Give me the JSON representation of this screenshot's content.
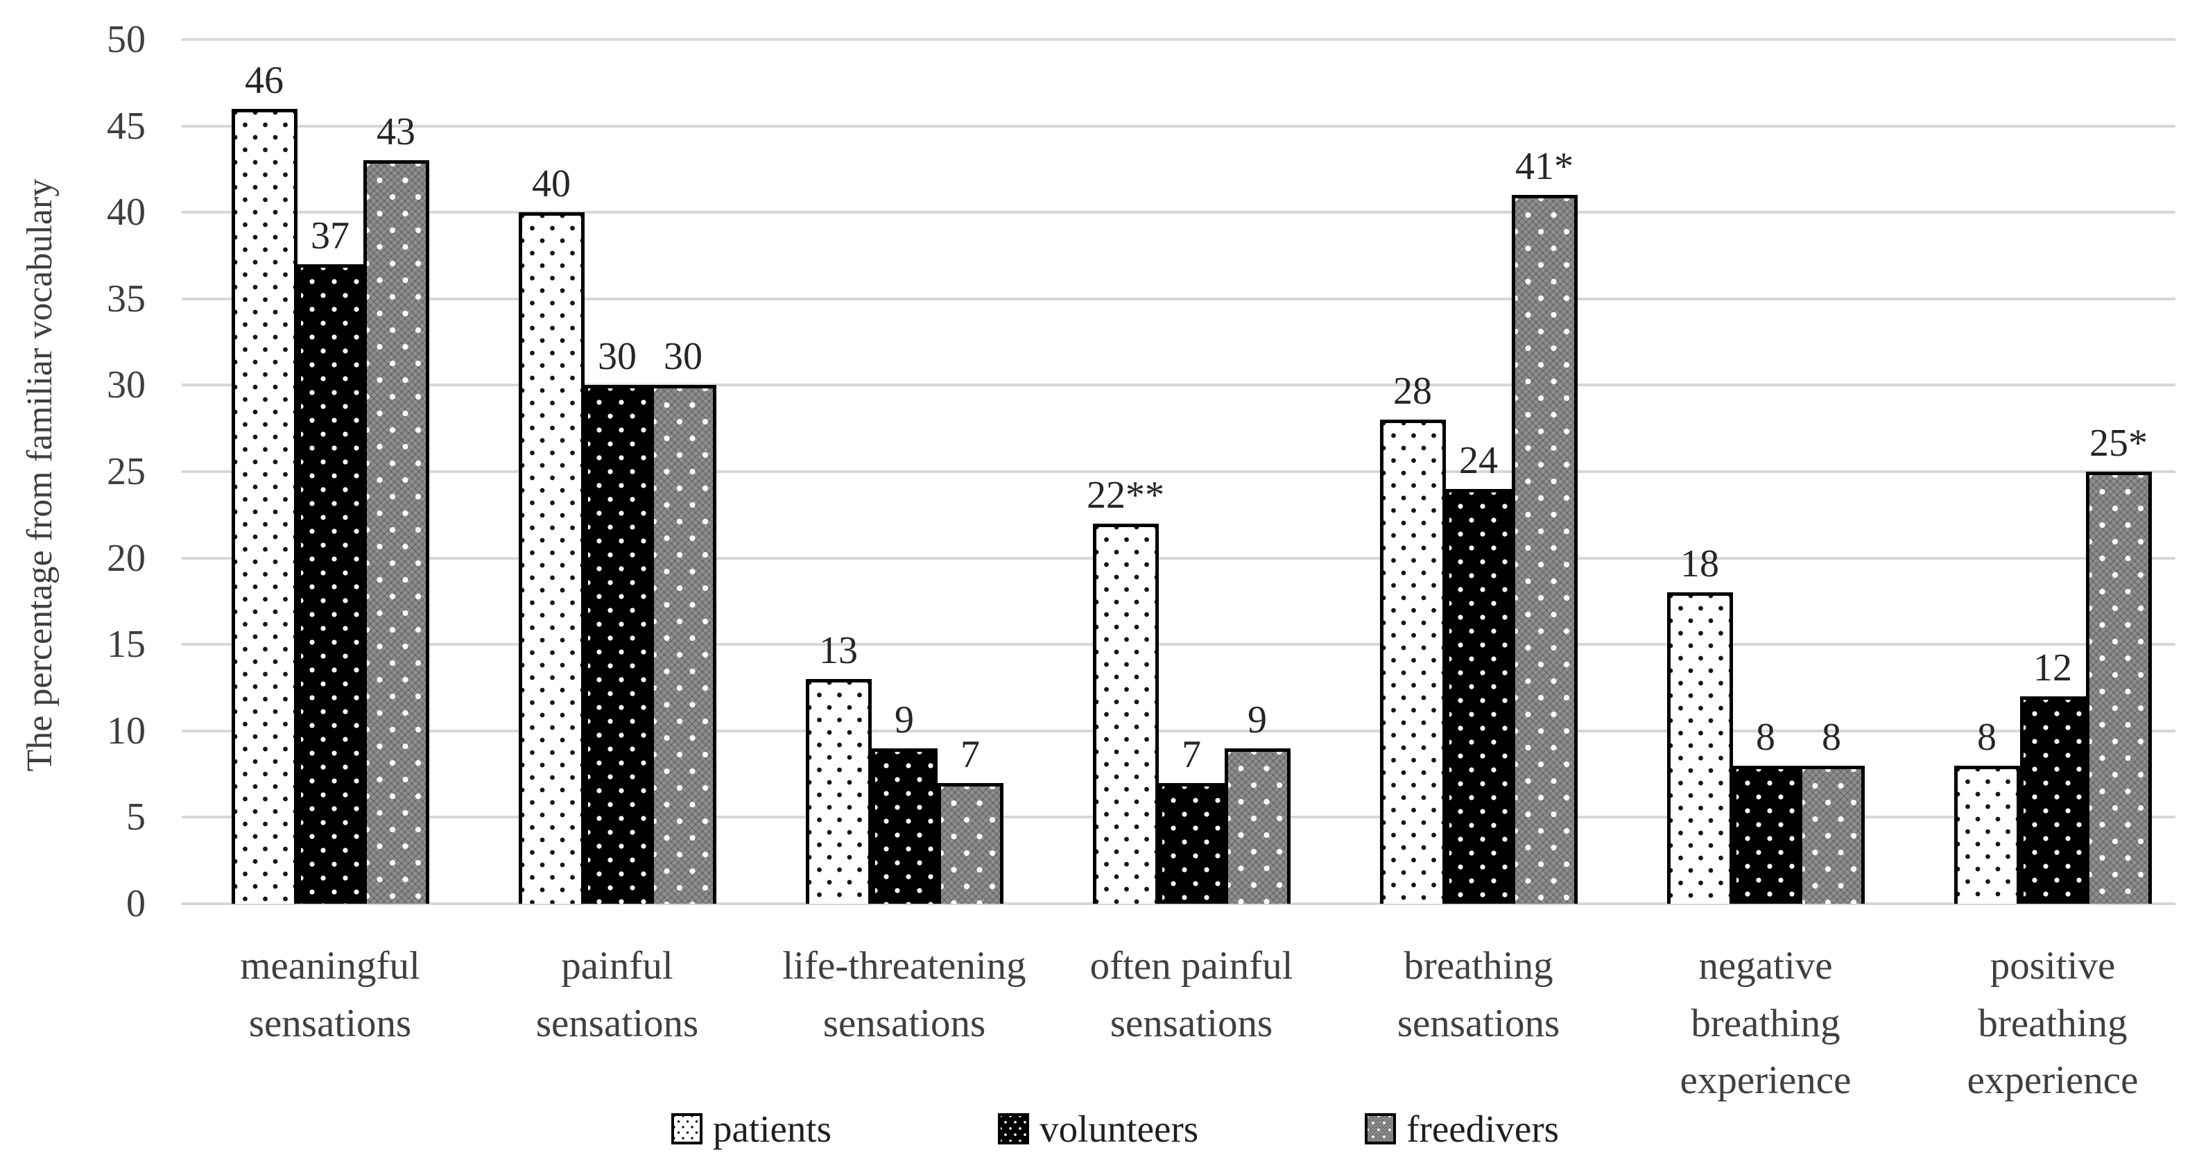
{
  "y_axis": {
    "title": "The percentage from familiar vocabulary",
    "ticks": [
      0,
      5,
      10,
      15,
      20,
      25,
      30,
      35,
      40,
      45,
      50
    ],
    "min": 0,
    "max": 50,
    "step": 5
  },
  "legend": {
    "items": [
      {
        "label": "patients",
        "swatch": "dotted-white-swatch"
      },
      {
        "label": "volunteers",
        "swatch": "dotted-black-swatch"
      },
      {
        "label": "freedivers",
        "swatch": "checker-gray-swatch"
      }
    ]
  },
  "chart_data": {
    "type": "bar",
    "title": "",
    "xlabel": "",
    "ylabel": "The percentage from familiar vocabulary",
    "ylim": [
      0,
      50
    ],
    "grid": true,
    "legend_position": "bottom",
    "categories": [
      "meaningful\nsensations",
      "painful\nsensations",
      "life-threatening\nsensations",
      "often painful\nsensations",
      "breathing\nsensations",
      "negative\nbreathing\nexperience",
      "positive\nbreathing\nexperience"
    ],
    "series": [
      {
        "name": "patients",
        "pattern": "white-with-black-dots",
        "values": [
          46,
          40,
          13,
          22,
          28,
          18,
          8
        ],
        "labels": [
          "46",
          "40",
          "13",
          "22**",
          "28",
          "18",
          "8"
        ]
      },
      {
        "name": "volunteers",
        "pattern": "black-with-white-dots",
        "values": [
          37,
          30,
          9,
          7,
          24,
          8,
          12
        ],
        "labels": [
          "37",
          "30",
          "9",
          "7",
          "24",
          "8",
          "12"
        ]
      },
      {
        "name": "freedivers",
        "pattern": "gray-checker-with-white-diamonds",
        "values": [
          43,
          30,
          7,
          9,
          41,
          8,
          25
        ],
        "labels": [
          "43",
          "30",
          "7",
          "9",
          "41*",
          "8",
          "25*"
        ]
      }
    ]
  },
  "colors": {
    "background": "#ffffff",
    "gridline": "#d7d7d7",
    "tick_text": "#3f3f3f",
    "category_text": "#3f3f3f",
    "data_label_text": "#262626",
    "legend_text": "#1f1f1f",
    "bar_outline": "#000000",
    "gray_fill": "#8f8f8f"
  }
}
